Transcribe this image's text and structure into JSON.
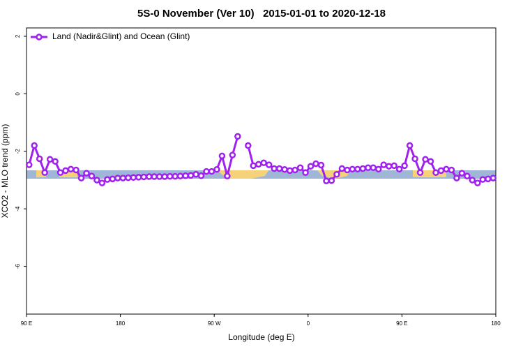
{
  "chart_data": {
    "type": "line",
    "title": "5S-0 November (Ver 10)   2015-01-01 to 2020-12-18",
    "x_label": "Longitude (deg E)",
    "y_label": "XCO2 - MLO trend (ppm)",
    "xlim": [
      90,
      540
    ],
    "ylim": [
      -7.66,
      2.29
    ],
    "xticks": [
      {
        "value": 90,
        "label": "90 E"
      },
      180,
      {
        "value": 270,
        "label": "90 W"
      },
      {
        "value": 360,
        "label": "0"
      },
      {
        "value": 450,
        "label": "90 E"
      },
      {
        "value": 540,
        "label": "180"
      }
    ],
    "yticks": [
      2,
      0,
      -2,
      -4,
      -6
    ],
    "legend": "top-left",
    "x": [
      92.5,
      97.5,
      102.5,
      107.5,
      112.5,
      117.5,
      122.5,
      127.5,
      132.5,
      137.5,
      142.5,
      147.5,
      152.5,
      157.5,
      162.5,
      167.5,
      172.5,
      177.5,
      182.5,
      187.5,
      192.5,
      197.5,
      202.5,
      207.5,
      212.5,
      217.5,
      222.5,
      227.5,
      232.5,
      237.5,
      242.5,
      247.5,
      252.5,
      257.5,
      262.5,
      267.5,
      272.5,
      277.5,
      282.5,
      287.5,
      292.5,
      297.5,
      302.5,
      307.5,
      312.5,
      317.5,
      322.5,
      327.5,
      332.5,
      337.5,
      342.5,
      347.5,
      352.5,
      357.5,
      362.5,
      367.5,
      372.5,
      377.5,
      382.5,
      387.5,
      392.5,
      397.5,
      402.5,
      407.5,
      412.5,
      417.5,
      422.5,
      427.5,
      432.5,
      437.5,
      442.5,
      447.5,
      452.5,
      457.5,
      462.5,
      467.5,
      472.5,
      477.5,
      482.5,
      487.5,
      492.5,
      497.5,
      502.5,
      507.5,
      512.5,
      517.5,
      522.5,
      527.5,
      532.5,
      537.5
    ],
    "series": [
      {
        "name": "Land (Nadir&Glint) and Ocean (Glint)",
        "color": "#a020f0",
        "values": [
          -2.47,
          -1.8,
          -2.26,
          -2.74,
          -2.28,
          -2.35,
          -2.74,
          -2.67,
          -2.62,
          -2.65,
          -2.93,
          -2.76,
          -2.86,
          -3.0,
          -3.1,
          -2.98,
          -2.96,
          -2.93,
          -2.93,
          -2.92,
          -2.91,
          -2.9,
          -2.89,
          -2.88,
          -2.88,
          -2.88,
          -2.88,
          -2.87,
          -2.87,
          -2.86,
          -2.85,
          -2.84,
          -2.8,
          -2.85,
          -2.7,
          -2.7,
          -2.63,
          -2.16,
          -2.86,
          -2.13,
          -1.48,
          null,
          -1.8,
          -2.5,
          -2.45,
          -2.4,
          -2.47,
          -2.6,
          -2.6,
          -2.63,
          -2.67,
          -2.65,
          -2.57,
          -2.74,
          -2.52,
          -2.43,
          -2.48,
          -3.03,
          -3.02,
          -2.8,
          -2.6,
          -2.65,
          -2.62,
          -2.62,
          -2.6,
          -2.57,
          -2.57,
          -2.62,
          -2.47,
          -2.52,
          -2.5,
          -2.62,
          -2.5,
          -1.8,
          -2.26,
          -2.74,
          -2.28,
          -2.35,
          -2.74,
          -2.67,
          -2.62,
          -2.65,
          -2.93,
          -2.76,
          -2.86,
          -3.0,
          -3.1,
          -2.98,
          -2.96,
          -2.93
        ]
      }
    ]
  }
}
